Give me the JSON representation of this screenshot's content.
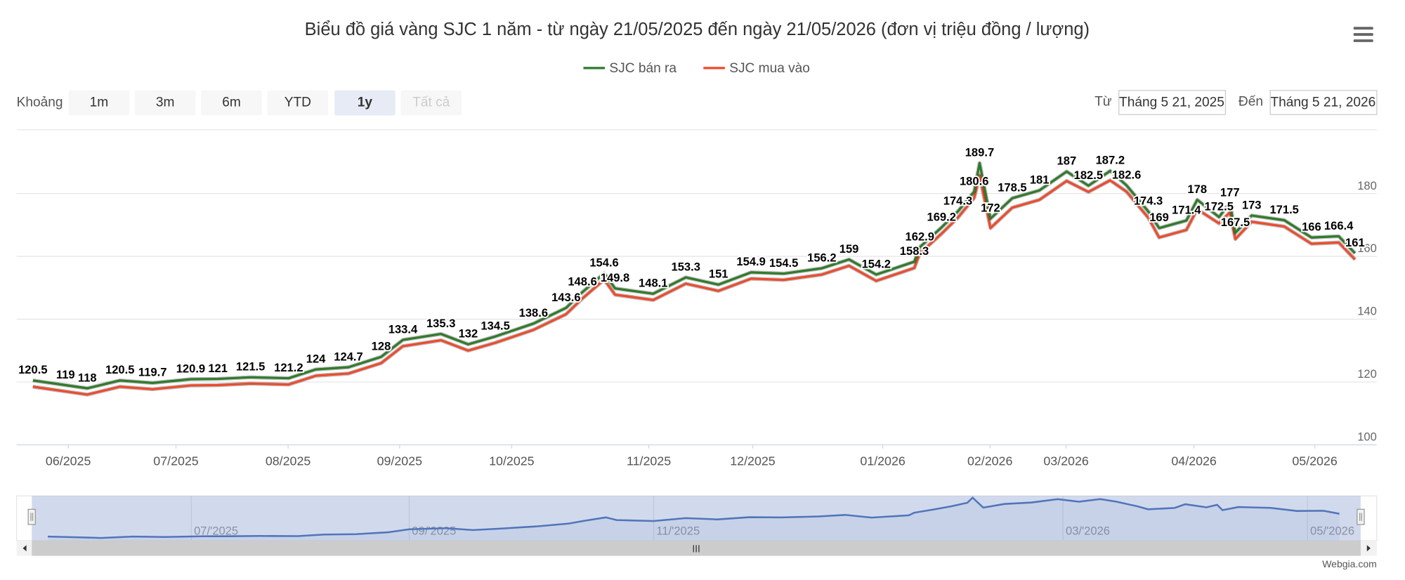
{
  "chart_data": {
    "type": "line",
    "title": "Biểu đồ giá vàng SJC 1 năm - từ ngày 21/05/2025 đến ngày 21/05/2026 (đơn vị triệu đồng / lượng)",
    "x": [
      3,
      9,
      13,
      19,
      25,
      32,
      37,
      43,
      50,
      55,
      61,
      67,
      71,
      78,
      83,
      88,
      95,
      101,
      104,
      108,
      110,
      117,
      123,
      129,
      135,
      141,
      148,
      153,
      158,
      165,
      166,
      170,
      173,
      176,
      177,
      179,
      183,
      188,
      193,
      197,
      201,
      204,
      208,
      210,
      215,
      217,
      221,
      223,
      224,
      227,
      233,
      238,
      243,
      246
    ],
    "series": [
      {
        "name": "SJC bán ra",
        "color": "#2f7a2a",
        "show_labels": true,
        "values": [
          120.5,
          119,
          118,
          120.5,
          119.7,
          120.9,
          121,
          121.5,
          121.2,
          124,
          124.7,
          128,
          133.4,
          135.3,
          132,
          134.5,
          138.6,
          143.6,
          148.6,
          154.6,
          149.8,
          148.1,
          153.3,
          151,
          154.9,
          154.5,
          156.2,
          159,
          154.2,
          158.3,
          162.9,
          169.2,
          174.3,
          180.6,
          189.7,
          172,
          178.5,
          181,
          187,
          182.5,
          187.2,
          182.6,
          174.3,
          169,
          171.4,
          178,
          172.5,
          177,
          167.5,
          173,
          171.5,
          166,
          166.4,
          161
        ]
      },
      {
        "name": "SJC mua vào",
        "color": "#ee4a2c",
        "show_labels": false,
        "values": [
          118.5,
          117,
          116,
          118.5,
          117.7,
          118.9,
          119,
          119.5,
          119.2,
          122,
          122.7,
          126,
          131.4,
          133.3,
          130,
          132.5,
          136.6,
          141.6,
          146.6,
          152.6,
          147.8,
          146.1,
          151.3,
          149,
          152.9,
          152.5,
          154.2,
          157,
          152.2,
          156.3,
          160.9,
          167.2,
          172.3,
          178.6,
          185.7,
          169,
          175.5,
          178,
          184,
          180.5,
          184.2,
          180.6,
          172.3,
          166,
          168.4,
          175,
          170.5,
          174,
          165.5,
          171,
          169.5,
          164,
          164.4,
          159
        ]
      }
    ],
    "xlim": [
      0,
      250
    ],
    "xticks": [
      {
        "value": 9.5,
        "label": "06/2025"
      },
      {
        "value": 29.3,
        "label": "07/2025"
      },
      {
        "value": 49.9,
        "label": "08/2025"
      },
      {
        "value": 70.4,
        "label": "09/2025"
      },
      {
        "value": 91,
        "label": "10/2025"
      },
      {
        "value": 116.2,
        "label": "11/2025"
      },
      {
        "value": 135.3,
        "label": "12/2025"
      },
      {
        "value": 159.2,
        "label": "01/2026"
      },
      {
        "value": 178.9,
        "label": "02/2026"
      },
      {
        "value": 192.9,
        "label": "03/2026"
      },
      {
        "value": 216.4,
        "label": "04/2026"
      },
      {
        "value": 238.6,
        "label": "05/2026"
      }
    ],
    "ylim": [
      100,
      200
    ],
    "yticks": [
      100,
      120,
      140,
      160,
      180
    ],
    "grid": true,
    "legend": "top",
    "range_selector": {
      "label": "Khoảng",
      "buttons": [
        "1m",
        "3m",
        "6m",
        "YTD",
        "1y",
        "Tất cả"
      ],
      "from_label": "Từ",
      "from": "Tháng 5 21, 2025",
      "to_label": "Đến",
      "to": "Tháng 5 21, 2026"
    },
    "navigator": {
      "color": "#4a6fb5",
      "xticks": [
        {
          "value": 30,
          "label": "07/'2025"
        },
        {
          "value": 71,
          "label": "09/'2025"
        },
        {
          "value": 117,
          "label": "11/'2025"
        },
        {
          "value": 194,
          "label": "03/'2026"
        },
        {
          "value": 240,
          "label": "05/'2026"
        }
      ]
    },
    "credits": "Webgia.com"
  }
}
